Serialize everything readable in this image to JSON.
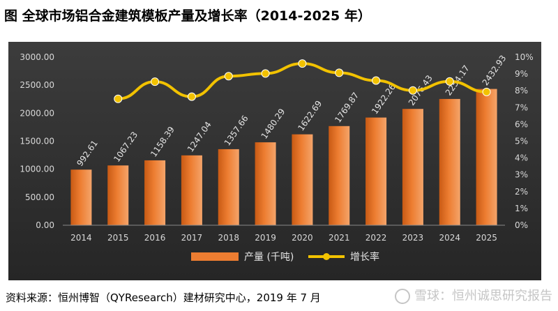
{
  "title": "图  全球市场铝合金建筑模板产量及增长率（2014-2025 年）",
  "source": "资料来源：恒州博智（QYResearch）建材研究中心，2019 年 7 月",
  "watermark": "雪球：恒州诚思研究报告",
  "colors": {
    "bar": "#ed7d31",
    "line": "#f2c200",
    "panel": "#333333",
    "text": "#d9d9d9"
  },
  "chart_data": {
    "type": "bar",
    "categories": [
      "2014",
      "2015",
      "2016",
      "2017",
      "2018",
      "2019",
      "2020",
      "2021",
      "2022",
      "2023",
      "2024",
      "2025"
    ],
    "series": [
      {
        "name": "产量 (千吨)",
        "type": "bar",
        "axis": "left",
        "values": [
          992.61,
          1067.23,
          1158.39,
          1247.04,
          1357.66,
          1480.29,
          1622.69,
          1769.87,
          1922.26,
          2076.43,
          2254.17,
          2432.93
        ],
        "labels": [
          "992.61",
          "1067.23",
          "1158.39",
          "1247.04",
          "1357.66",
          "1480.29",
          "1622.69",
          "1769.87",
          "1922.26",
          "2076.43",
          "2254.17",
          "2432.93"
        ]
      },
      {
        "name": "增长率",
        "type": "line",
        "axis": "right",
        "values": [
          null,
          7.52,
          8.54,
          7.65,
          8.87,
          9.03,
          9.62,
          9.07,
          8.61,
          8.02,
          8.56,
          7.93
        ]
      }
    ],
    "y_left": {
      "ylim": [
        0,
        3000
      ],
      "ticks": [
        "0.00",
        "500.00",
        "1000.00",
        "1500.00",
        "2000.00",
        "2500.00",
        "3000.00"
      ]
    },
    "y_right": {
      "ylim": [
        0,
        10
      ],
      "unit": "%",
      "ticks": [
        "0%",
        "1%",
        "2%",
        "3%",
        "4%",
        "5%",
        "6%",
        "7%",
        "8%",
        "9%",
        "10%"
      ]
    },
    "grid": false,
    "legend_position": "bottom-center"
  }
}
